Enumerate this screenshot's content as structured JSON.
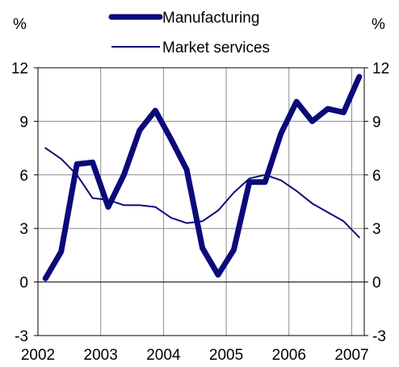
{
  "chart_data": {
    "type": "line",
    "left_unit": "%",
    "right_unit": "%",
    "ylim": [
      -3,
      12
    ],
    "yticks": [
      -3,
      0,
      3,
      6,
      9,
      12
    ],
    "xlim": [
      2002,
      2007.2
    ],
    "xticks": [
      "2002",
      "2003",
      "2004",
      "2005",
      "2006",
      "2007"
    ],
    "grid": true,
    "legend_position": "top-center",
    "series": [
      {
        "name": "Manufacturing",
        "color": "#0a0a7a",
        "x": [
          2002.0,
          2002.25,
          2002.5,
          2002.75,
          2003.0,
          2003.25,
          2003.5,
          2003.75,
          2004.0,
          2004.25,
          2004.5,
          2004.75,
          2005.0,
          2005.25,
          2005.5,
          2005.75,
          2006.0,
          2006.25,
          2006.5,
          2006.75,
          2007.0
        ],
        "values": [
          0.2,
          1.7,
          6.6,
          6.7,
          4.2,
          6.0,
          8.5,
          9.6,
          8.0,
          6.3,
          1.9,
          0.4,
          1.8,
          5.6,
          5.6,
          8.3,
          10.1,
          9.0,
          9.7,
          9.5,
          11.5
        ]
      },
      {
        "name": "Market services",
        "color": "#0a0a7a",
        "x": [
          2002.0,
          2002.25,
          2002.5,
          2002.75,
          2003.0,
          2003.25,
          2003.5,
          2003.75,
          2004.0,
          2004.25,
          2004.5,
          2004.75,
          2005.0,
          2005.25,
          2005.5,
          2005.75,
          2006.0,
          2006.25,
          2006.5,
          2006.75,
          2007.0
        ],
        "values": [
          7.5,
          6.9,
          6.0,
          4.7,
          4.6,
          4.3,
          4.3,
          4.2,
          3.6,
          3.3,
          3.4,
          4.0,
          5.0,
          5.8,
          6.0,
          5.7,
          5.1,
          4.4,
          3.9,
          3.4,
          2.5
        ]
      }
    ]
  }
}
